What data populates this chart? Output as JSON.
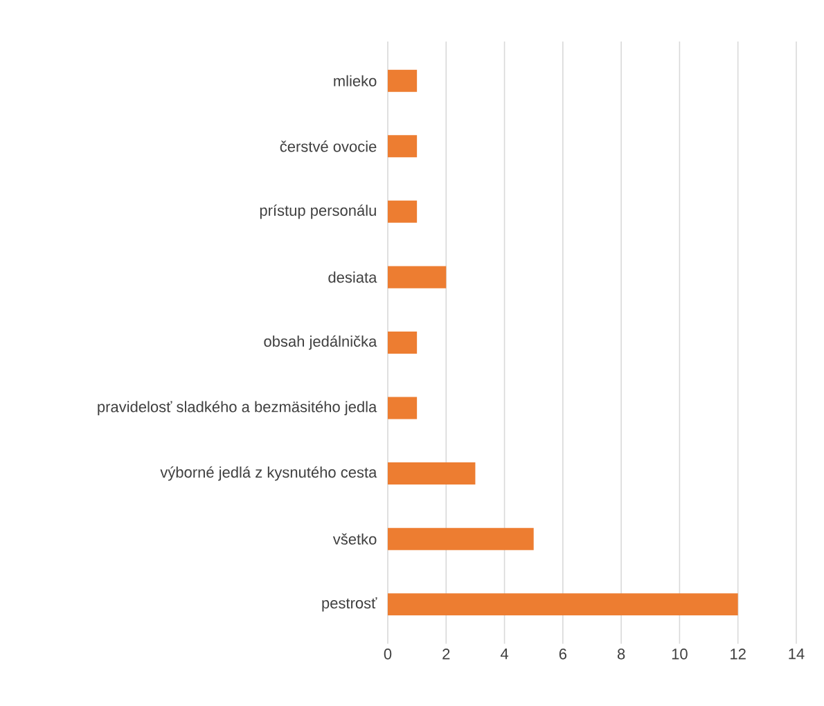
{
  "chart_data": {
    "type": "bar",
    "orientation": "horizontal",
    "categories": [
      "mlieko",
      "čerstvé ovocie",
      "prístup personálu",
      "desiata",
      "obsah jedálnička",
      "pravidelosť sladkého a bezmäsitého jedla",
      "výborné jedlá z kysnutého cesta",
      "všetko",
      "pestrosť"
    ],
    "values": [
      1,
      1,
      1,
      2,
      1,
      1,
      3,
      5,
      12
    ],
    "color": "#ed7d31",
    "xlim": [
      0,
      14
    ],
    "xticks": [
      0,
      2,
      4,
      6,
      8,
      10,
      12,
      14
    ],
    "grid": "x"
  }
}
